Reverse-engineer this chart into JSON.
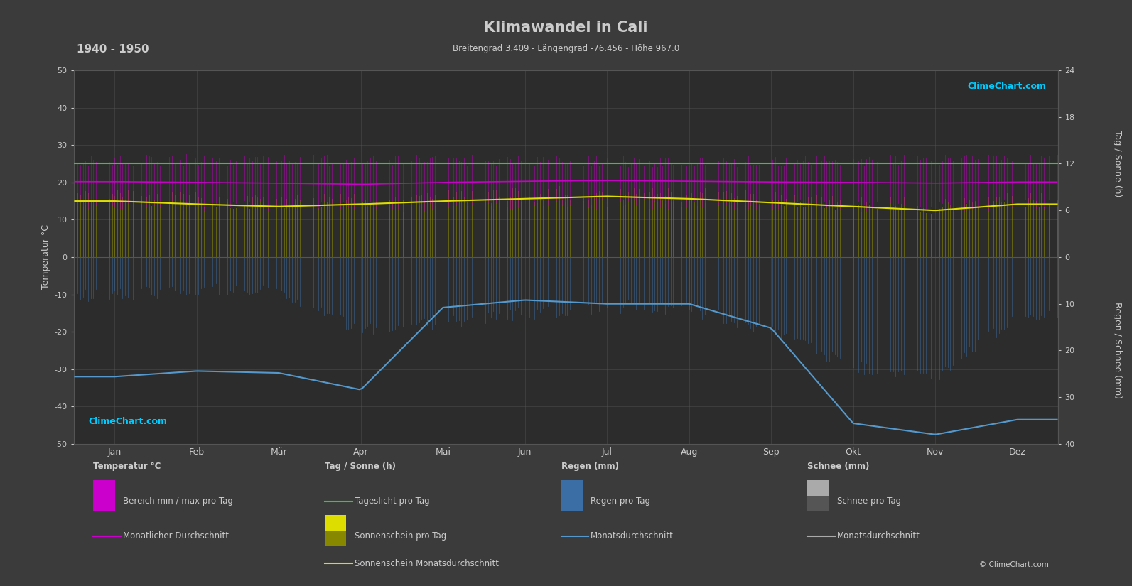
{
  "title": "Klimawandel in Cali",
  "subtitle": "Breitengrad 3.409 - Längengrad -76.456 - Höhe 967.0",
  "year_range": "1940 - 1950",
  "bg_color": "#3b3b3b",
  "plot_bg_color": "#2c2c2c",
  "grid_color": "#555555",
  "text_color": "#cccccc",
  "months": [
    "Jan",
    "Feb",
    "Mär",
    "Apr",
    "Mai",
    "Jun",
    "Jul",
    "Aug",
    "Sep",
    "Okt",
    "Nov",
    "Dez"
  ],
  "temp_ylim": [
    -50,
    50
  ],
  "temp_avg_monthly": [
    20.2,
    20.0,
    19.8,
    19.5,
    20.0,
    20.3,
    20.5,
    20.3,
    20.1,
    20.0,
    19.8,
    20.1
  ],
  "temp_max_monthly": [
    25.5,
    25.5,
    25.5,
    25.3,
    25.5,
    25.2,
    25.0,
    25.0,
    25.2,
    25.5,
    25.5,
    25.5
  ],
  "temp_min_monthly": [
    14.8,
    14.5,
    14.3,
    14.2,
    14.5,
    14.8,
    15.0,
    14.8,
    14.5,
    14.2,
    14.0,
    14.5
  ],
  "daylight_monthly": [
    12.0,
    12.0,
    12.0,
    12.0,
    12.0,
    12.0,
    12.0,
    12.0,
    12.0,
    12.0,
    12.0,
    12.0
  ],
  "sunshine_avg_monthly": [
    7.2,
    6.8,
    6.5,
    6.8,
    7.2,
    7.5,
    7.8,
    7.5,
    7.0,
    6.5,
    6.0,
    6.8
  ],
  "rain_avg_monthly": [
    6.5,
    5.5,
    6.0,
    14.0,
    12.5,
    10.5,
    9.0,
    9.5,
    14.5,
    22.0,
    24.0,
    11.0
  ],
  "rain_line_monthly": [
    -32.0,
    -30.5,
    -31.0,
    -35.5,
    -13.5,
    -11.5,
    -12.5,
    -12.5,
    -19.0,
    -44.5,
    -47.5,
    -43.5
  ],
  "color_magenta": "#cc00cc",
  "color_magenta_bar": "#bb00bb",
  "color_green_line": "#00ee00",
  "color_yellow_line": "#dddd00",
  "color_olive_bar": "#888800",
  "color_blue_bar": "#3a6ea5",
  "color_blue_line": "#5599cc",
  "color_gray_bar": "#888888",
  "color_gray_line": "#aaaaaa",
  "color_cyan": "#00ccff",
  "days_per_month": [
    31,
    28,
    31,
    30,
    31,
    30,
    31,
    31,
    30,
    31,
    30,
    31
  ]
}
